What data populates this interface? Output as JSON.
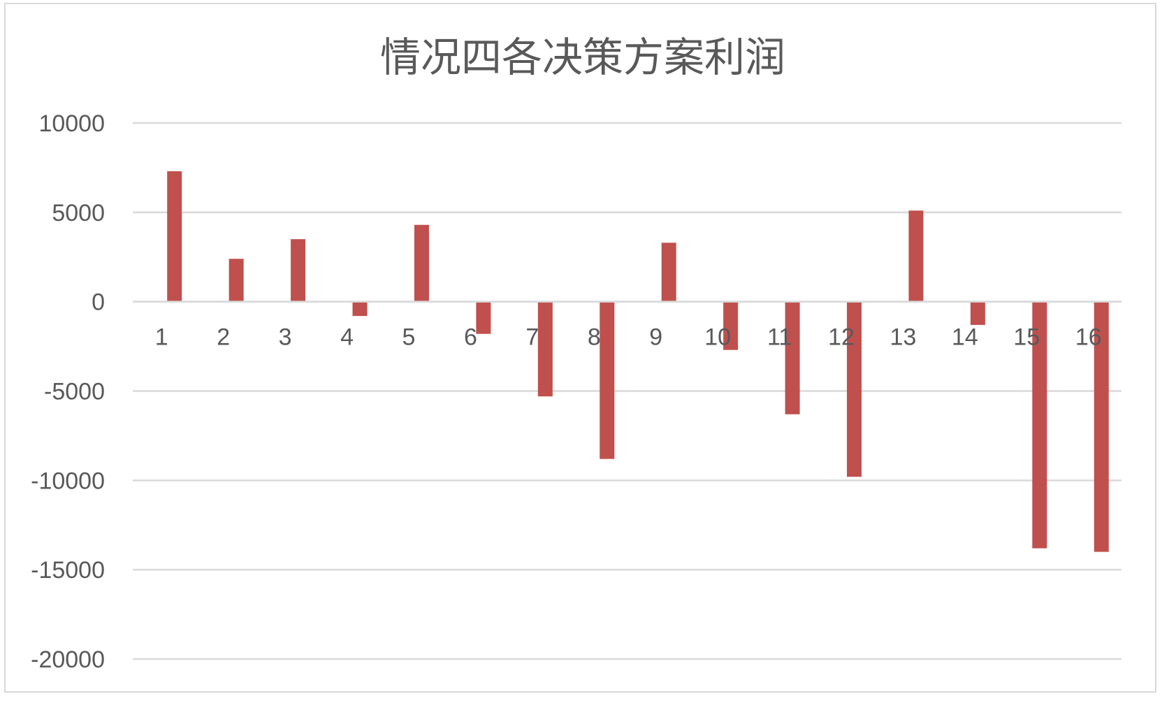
{
  "chart_data": {
    "type": "bar",
    "title": "情况四各决策方案利润",
    "categories": [
      "1",
      "2",
      "3",
      "4",
      "5",
      "6",
      "7",
      "8",
      "9",
      "10",
      "11",
      "12",
      "13",
      "14",
      "15",
      "16"
    ],
    "values": [
      7300,
      2400,
      3500,
      -800,
      4300,
      -1800,
      -5300,
      -8800,
      3300,
      -2700,
      -6300,
      -9800,
      5100,
      -1300,
      -13800,
      -14000
    ],
    "ylim": [
      -20000,
      10000
    ],
    "yticks": [
      10000,
      5000,
      0,
      -5000,
      -10000,
      -15000,
      -20000
    ],
    "grid": true,
    "bar_color": "#c0504d",
    "xlabel": "",
    "ylabel": ""
  }
}
